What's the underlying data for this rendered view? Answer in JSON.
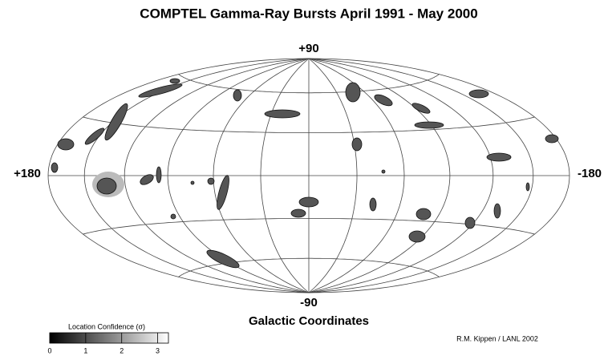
{
  "title": "COMPTEL Gamma-Ray Bursts  April 1991 - May 2000",
  "map": {
    "top_label": "+90",
    "bottom_label": "-90",
    "left_label": "+180",
    "right_label": "-180",
    "caption": "Galactic Coordinates"
  },
  "colorbar": {
    "label": "Location Confidence (σ)",
    "range": [
      0,
      3.3
    ],
    "ticks": [
      0,
      1,
      2,
      3
    ]
  },
  "credit": "R.M. Kippen / LANL  2002"
}
